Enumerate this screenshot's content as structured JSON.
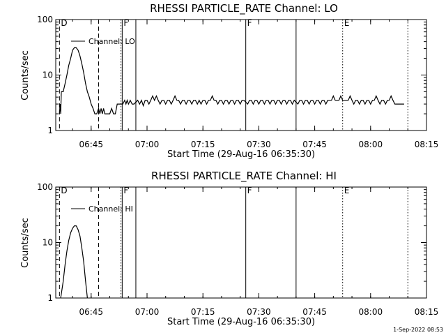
{
  "colors": {
    "background": "#ffffff",
    "ink": "#000000"
  },
  "footer_timestamp": "1-Sep-2022 08:53",
  "chart_data": [
    {
      "type": "line",
      "title": "RHESSI PARTICLE_RATE Channel: LO",
      "xlabel": "Start Time (29-Aug-16 06:35:30)",
      "ylabel": "Counts/sec",
      "x_unit": "UT time (HH:MM) on 29-Aug-16",
      "y_scale": "log",
      "ylim": [
        1,
        100
      ],
      "xlim": [
        "06:35:30",
        "08:15:00"
      ],
      "x_ticks": [
        "06:45",
        "07:00",
        "07:15",
        "07:30",
        "07:45",
        "08:00",
        "08:15"
      ],
      "y_ticks": [
        "1",
        "10",
        "100"
      ],
      "legend": {
        "label": "Channel: LO",
        "position": "top-left"
      },
      "markers": [
        {
          "time": "06:36:30",
          "label": "D",
          "style": "dashed"
        },
        {
          "time": "06:47:00",
          "label": "",
          "style": "dashed"
        },
        {
          "time": "06:53:00",
          "label": "",
          "style": "dotted"
        },
        {
          "time": "06:53:20",
          "label": "F",
          "style": "solid"
        },
        {
          "time": "06:57:00",
          "label": "",
          "style": "solid"
        },
        {
          "time": "07:26:30",
          "label": "F",
          "style": "solid"
        },
        {
          "time": "07:40:00",
          "label": "",
          "style": "solid"
        },
        {
          "time": "07:52:30",
          "label": "E",
          "style": "dotted"
        },
        {
          "time": "08:10:00",
          "label": "",
          "style": "dotted"
        }
      ],
      "series": [
        {
          "name": "Channel: LO",
          "points": [
            [
              "06:36:30",
              2.0
            ],
            [
              "06:36:40",
              3.0
            ],
            [
              "06:36:50",
              2.0
            ],
            [
              "06:37:00",
              5.0
            ],
            [
              "06:37:30",
              5.0
            ],
            [
              "06:38:00",
              7.0
            ],
            [
              "06:38:30",
              10.0
            ],
            [
              "06:39:00",
              15.0
            ],
            [
              "06:39:30",
              20.0
            ],
            [
              "06:40:00",
              28.0
            ],
            [
              "06:40:30",
              31.0
            ],
            [
              "06:41:00",
              31.0
            ],
            [
              "06:41:30",
              28.0
            ],
            [
              "06:42:00",
              22.0
            ],
            [
              "06:42:30",
              16.0
            ],
            [
              "06:43:00",
              11.0
            ],
            [
              "06:43:30",
              7.0
            ],
            [
              "06:44:00",
              5.0
            ],
            [
              "06:44:30",
              4.0
            ],
            [
              "06:45:00",
              3.0
            ],
            [
              "06:45:30",
              2.5
            ],
            [
              "06:46:00",
              2.0
            ],
            [
              "06:46:30",
              2.0
            ],
            [
              "06:47:00",
              2.5
            ],
            [
              "06:47:20",
              2.0
            ],
            [
              "06:47:40",
              2.5
            ],
            [
              "06:48:00",
              2.0
            ],
            [
              "06:48:20",
              2.5
            ],
            [
              "06:48:40",
              2.0
            ],
            [
              "06:49:00",
              2.0
            ],
            [
              "06:49:30",
              2.0
            ],
            [
              "06:50:00",
              2.0
            ],
            [
              "06:50:30",
              2.5
            ],
            [
              "06:51:00",
              2.0
            ],
            [
              "06:51:30",
              2.0
            ],
            [
              "06:52:00",
              3.0
            ],
            [
              "06:52:30",
              3.0
            ],
            [
              "06:53:30",
              3.0
            ],
            [
              "06:54:00",
              3.5
            ],
            [
              "06:54:20",
              3.0
            ],
            [
              "06:54:40",
              3.5
            ],
            [
              "06:55:00",
              3.0
            ],
            [
              "06:55:30",
              3.5
            ],
            [
              "06:56:00",
              3.0
            ],
            [
              "06:56:30",
              3.0
            ],
            [
              "06:57:30",
              3.5
            ],
            [
              "06:58:00",
              3.0
            ],
            [
              "06:58:30",
              3.5
            ],
            [
              "06:59:00",
              2.8
            ],
            [
              "06:59:30",
              3.5
            ],
            [
              "07:00:00",
              3.5
            ],
            [
              "07:00:30",
              3.0
            ],
            [
              "07:01:00",
              3.5
            ],
            [
              "07:01:30",
              4.2
            ],
            [
              "07:02:00",
              3.5
            ],
            [
              "07:02:30",
              4.2
            ],
            [
              "07:03:00",
              3.5
            ],
            [
              "07:03:30",
              3.0
            ],
            [
              "07:04:00",
              3.5
            ],
            [
              "07:04:30",
              3.5
            ],
            [
              "07:05:00",
              3.0
            ],
            [
              "07:05:30",
              3.5
            ],
            [
              "07:06:00",
              3.5
            ],
            [
              "07:06:30",
              3.0
            ],
            [
              "07:07:00",
              3.5
            ],
            [
              "07:07:30",
              4.2
            ],
            [
              "07:08:00",
              3.5
            ],
            [
              "07:08:30",
              3.5
            ],
            [
              "07:09:00",
              3.0
            ],
            [
              "07:09:30",
              3.5
            ],
            [
              "07:10:00",
              3.5
            ],
            [
              "07:10:30",
              3.0
            ],
            [
              "07:11:00",
              3.5
            ],
            [
              "07:11:30",
              3.5
            ],
            [
              "07:12:00",
              3.0
            ],
            [
              "07:12:30",
              3.5
            ],
            [
              "07:13:00",
              3.5
            ],
            [
              "07:13:30",
              3.0
            ],
            [
              "07:14:00",
              3.5
            ],
            [
              "07:14:30",
              3.0
            ],
            [
              "07:15:00",
              3.5
            ],
            [
              "07:15:30",
              3.5
            ],
            [
              "07:16:00",
              3.0
            ],
            [
              "07:16:30",
              3.5
            ],
            [
              "07:17:00",
              3.5
            ],
            [
              "07:17:30",
              4.2
            ],
            [
              "07:18:00",
              3.5
            ],
            [
              "07:18:30",
              3.5
            ],
            [
              "07:19:00",
              3.0
            ],
            [
              "07:19:30",
              3.5
            ],
            [
              "07:20:00",
              3.5
            ],
            [
              "07:20:30",
              3.0
            ],
            [
              "07:21:00",
              3.5
            ],
            [
              "07:21:30",
              3.5
            ],
            [
              "07:22:00",
              3.0
            ],
            [
              "07:22:30",
              3.5
            ],
            [
              "07:23:00",
              3.5
            ],
            [
              "07:23:30",
              3.0
            ],
            [
              "07:24:00",
              3.5
            ],
            [
              "07:24:30",
              3.5
            ],
            [
              "07:25:00",
              3.0
            ],
            [
              "07:25:30",
              3.5
            ],
            [
              "07:26:00",
              3.5
            ],
            [
              "07:27:00",
              3.0
            ],
            [
              "07:27:30",
              3.5
            ],
            [
              "07:28:00",
              3.5
            ],
            [
              "07:28:30",
              3.0
            ],
            [
              "07:29:00",
              3.5
            ],
            [
              "07:29:30",
              3.5
            ],
            [
              "07:30:00",
              3.0
            ],
            [
              "07:30:30",
              3.5
            ],
            [
              "07:31:00",
              3.5
            ],
            [
              "07:31:30",
              3.0
            ],
            [
              "07:32:00",
              3.5
            ],
            [
              "07:32:30",
              3.5
            ],
            [
              "07:33:00",
              3.0
            ],
            [
              "07:33:30",
              3.5
            ],
            [
              "07:34:00",
              3.5
            ],
            [
              "07:34:30",
              3.0
            ],
            [
              "07:35:00",
              3.5
            ],
            [
              "07:35:30",
              3.5
            ],
            [
              "07:36:00",
              3.0
            ],
            [
              "07:36:30",
              3.5
            ],
            [
              "07:37:00",
              3.5
            ],
            [
              "07:37:30",
              3.0
            ],
            [
              "07:38:00",
              3.5
            ],
            [
              "07:38:30",
              3.5
            ],
            [
              "07:39:00",
              3.0
            ],
            [
              "07:39:30",
              3.5
            ],
            [
              "07:40:30",
              3.0
            ],
            [
              "07:41:00",
              3.5
            ],
            [
              "07:41:30",
              3.5
            ],
            [
              "07:42:00",
              3.0
            ],
            [
              "07:42:30",
              3.5
            ],
            [
              "07:43:00",
              3.5
            ],
            [
              "07:43:30",
              3.0
            ],
            [
              "07:44:00",
              3.5
            ],
            [
              "07:44:30",
              3.5
            ],
            [
              "07:45:00",
              3.0
            ],
            [
              "07:45:30",
              3.5
            ],
            [
              "07:46:00",
              3.5
            ],
            [
              "07:46:30",
              3.0
            ],
            [
              "07:47:00",
              3.5
            ],
            [
              "07:47:30",
              3.5
            ],
            [
              "07:48:00",
              3.0
            ],
            [
              "07:48:30",
              3.5
            ],
            [
              "07:49:00",
              3.5
            ],
            [
              "07:49:30",
              3.5
            ],
            [
              "07:50:00",
              4.2
            ],
            [
              "07:50:30",
              3.5
            ],
            [
              "07:51:00",
              3.5
            ],
            [
              "07:51:30",
              3.5
            ],
            [
              "07:52:00",
              4.2
            ],
            [
              "07:52:30",
              3.5
            ],
            [
              "07:53:00",
              3.5
            ],
            [
              "07:53:30",
              3.5
            ],
            [
              "07:54:00",
              3.5
            ],
            [
              "07:54:30",
              4.2
            ],
            [
              "07:55:00",
              3.5
            ],
            [
              "07:55:30",
              3.0
            ],
            [
              "07:56:00",
              3.5
            ],
            [
              "07:56:30",
              3.5
            ],
            [
              "07:57:00",
              3.0
            ],
            [
              "07:57:30",
              3.5
            ],
            [
              "07:58:00",
              3.5
            ],
            [
              "07:58:30",
              3.0
            ],
            [
              "07:59:00",
              3.5
            ],
            [
              "07:59:30",
              3.5
            ],
            [
              "08:00:00",
              3.0
            ],
            [
              "08:00:30",
              3.5
            ],
            [
              "08:01:00",
              3.5
            ],
            [
              "08:01:30",
              4.2
            ],
            [
              "08:02:00",
              3.5
            ],
            [
              "08:02:30",
              3.0
            ],
            [
              "08:03:00",
              3.5
            ],
            [
              "08:03:30",
              3.5
            ],
            [
              "08:04:00",
              3.0
            ],
            [
              "08:04:30",
              3.5
            ],
            [
              "08:05:00",
              3.5
            ],
            [
              "08:05:30",
              4.2
            ],
            [
              "08:06:00",
              3.5
            ],
            [
              "08:06:30",
              3.0
            ],
            [
              "08:07:00",
              3.0
            ],
            [
              "08:07:30",
              3.0
            ],
            [
              "08:08:00",
              3.0
            ],
            [
              "08:09:00",
              3.0
            ]
          ]
        }
      ]
    },
    {
      "type": "line",
      "title": "RHESSI PARTICLE_RATE Channel: HI",
      "xlabel": "Start Time (29-Aug-16 06:35:30)",
      "ylabel": "Counts/sec",
      "x_unit": "UT time (HH:MM) on 29-Aug-16",
      "y_scale": "log",
      "ylim": [
        1,
        100
      ],
      "xlim": [
        "06:35:30",
        "08:15:00"
      ],
      "x_ticks": [
        "06:45",
        "07:00",
        "07:15",
        "07:30",
        "07:45",
        "08:00",
        "08:15"
      ],
      "y_ticks": [
        "1",
        "10",
        "100"
      ],
      "legend": {
        "label": "Channel: HI",
        "position": "top-left"
      },
      "markers": [
        {
          "time": "06:36:30",
          "label": "D",
          "style": "dashed"
        },
        {
          "time": "06:47:00",
          "label": "",
          "style": "dashed"
        },
        {
          "time": "06:53:00",
          "label": "",
          "style": "dotted"
        },
        {
          "time": "06:53:20",
          "label": "F",
          "style": "solid"
        },
        {
          "time": "06:57:00",
          "label": "",
          "style": "solid"
        },
        {
          "time": "07:26:30",
          "label": "F",
          "style": "solid"
        },
        {
          "time": "07:40:00",
          "label": "",
          "style": "solid"
        },
        {
          "time": "07:52:30",
          "label": "E",
          "style": "dotted"
        },
        {
          "time": "08:10:00",
          "label": "",
          "style": "dotted"
        }
      ],
      "series": [
        {
          "name": "Channel: HI",
          "points": [
            [
              "06:36:50",
              1.0
            ],
            [
              "06:37:30",
              2.0
            ],
            [
              "06:38:00",
              4.0
            ],
            [
              "06:38:30",
              7.0
            ],
            [
              "06:39:00",
              11.0
            ],
            [
              "06:39:30",
              15.0
            ],
            [
              "06:40:00",
              18.0
            ],
            [
              "06:40:30",
              20.0
            ],
            [
              "06:41:00",
              20.0
            ],
            [
              "06:41:30",
              17.0
            ],
            [
              "06:42:00",
              13.0
            ],
            [
              "06:42:30",
              8.0
            ],
            [
              "06:43:00",
              4.5
            ],
            [
              "06:43:30",
              2.0
            ],
            [
              "06:44:00",
              1.0
            ]
          ]
        }
      ]
    }
  ]
}
